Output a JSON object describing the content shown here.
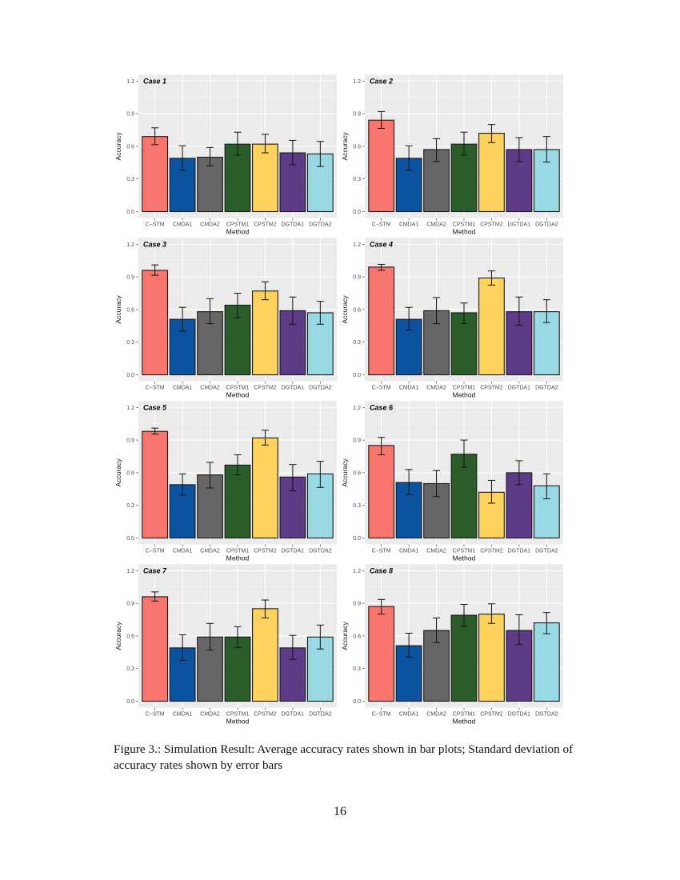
{
  "figure": {
    "caption": "Figure 3.: Simulation Result: Average accuracy rates shown in bar plots; Standard deviation of accuracy rates shown by error bars",
    "page_number": "16"
  },
  "colors": {
    "C-STM": "#F8766D",
    "CMDA1": "#0B539E",
    "CMDA2": "#666666",
    "CPSTM1": "#2A5D2A",
    "CPSTM2": "#FDD35E",
    "DGTDA1": "#5E3B86",
    "DGTDA2": "#98D9E3",
    "panel_bg": "#EBEBEB",
    "grid": "#FFFFFF"
  },
  "chart_data": [
    {
      "type": "bar",
      "title": "Case 1",
      "xlabel": "Method",
      "ylabel": "Accuracy",
      "ylim": [
        0,
        1.2
      ],
      "yticks": [
        "0.0",
        "0.3",
        "0.6",
        "0.9",
        "1.2"
      ],
      "grid": true,
      "categories": [
        "C−STM",
        "CMDA1",
        "CMDA2",
        "CPSTM1",
        "CPSTM2",
        "DGTDA1",
        "DGTDA2"
      ],
      "values": [
        0.69,
        0.49,
        0.5,
        0.62,
        0.62,
        0.54,
        0.53
      ],
      "error_bars": [
        [
          0.615,
          0.77
        ],
        [
          0.38,
          0.605
        ],
        [
          0.42,
          0.59
        ],
        [
          0.52,
          0.73
        ],
        [
          0.54,
          0.71
        ],
        [
          0.43,
          0.655
        ],
        [
          0.415,
          0.645
        ]
      ]
    },
    {
      "type": "bar",
      "title": "Case 2",
      "xlabel": "Method",
      "ylabel": "Accuracy",
      "ylim": [
        0,
        1.2
      ],
      "yticks": [
        "0.0",
        "0.3",
        "0.6",
        "0.9",
        "1.2"
      ],
      "grid": true,
      "categories": [
        "C−STM",
        "CMDA1",
        "CMDA2",
        "CPSTM1",
        "CPSTM2",
        "DGTDA1",
        "DGTDA2"
      ],
      "values": [
        0.84,
        0.49,
        0.57,
        0.62,
        0.72,
        0.57,
        0.57
      ],
      "error_bars": [
        [
          0.765,
          0.92
        ],
        [
          0.38,
          0.605
        ],
        [
          0.46,
          0.67
        ],
        [
          0.52,
          0.73
        ],
        [
          0.635,
          0.8
        ],
        [
          0.46,
          0.68
        ],
        [
          0.455,
          0.69
        ]
      ]
    },
    {
      "type": "bar",
      "title": "Case 3",
      "xlabel": "Method",
      "ylabel": "Accuracy",
      "ylim": [
        0,
        1.2
      ],
      "yticks": [
        "0.0",
        "0.3",
        "0.6",
        "0.9",
        "1.2"
      ],
      "grid": true,
      "categories": [
        "C−STM",
        "CMDA1",
        "CMDA2",
        "CPSTM1",
        "CPSTM2",
        "DGTDA1",
        "DGTDA2"
      ],
      "values": [
        0.96,
        0.51,
        0.58,
        0.64,
        0.77,
        0.59,
        0.57
      ],
      "error_bars": [
        [
          0.915,
          1.01
        ],
        [
          0.4,
          0.62
        ],
        [
          0.47,
          0.7
        ],
        [
          0.525,
          0.75
        ],
        [
          0.69,
          0.855
        ],
        [
          0.465,
          0.715
        ],
        [
          0.465,
          0.675
        ]
      ]
    },
    {
      "type": "bar",
      "title": "Case 4",
      "xlabel": "Method",
      "ylabel": "Accuracy",
      "ylim": [
        0,
        1.2
      ],
      "yticks": [
        "0.0",
        "0.3",
        "0.6",
        "0.9",
        "1.2"
      ],
      "grid": true,
      "categories": [
        "C−STM",
        "CMDA1",
        "CMDA2",
        "CPSTM1",
        "CPSTM2",
        "DGTDA1",
        "DGTDA2"
      ],
      "values": [
        0.99,
        0.51,
        0.59,
        0.57,
        0.89,
        0.58,
        0.58
      ],
      "error_bars": [
        [
          0.96,
          1.015
        ],
        [
          0.41,
          0.62
        ],
        [
          0.47,
          0.71
        ],
        [
          0.47,
          0.66
        ],
        [
          0.825,
          0.955
        ],
        [
          0.455,
          0.715
        ],
        [
          0.48,
          0.69
        ]
      ]
    },
    {
      "type": "bar",
      "title": "Case 5",
      "xlabel": "Method",
      "ylabel": "Accuracy",
      "ylim": [
        0,
        1.2
      ],
      "yticks": [
        "0.0",
        "0.3",
        "0.6",
        "0.9",
        "1.2"
      ],
      "grid": true,
      "categories": [
        "C−STM",
        "CMDA1",
        "CMDA2",
        "CPSTM1",
        "CPSTM2",
        "DGTDA1",
        "DGTDA2"
      ],
      "values": [
        0.98,
        0.49,
        0.58,
        0.67,
        0.92,
        0.56,
        0.59
      ],
      "error_bars": [
        [
          0.955,
          1.01
        ],
        [
          0.395,
          0.59
        ],
        [
          0.46,
          0.695
        ],
        [
          0.58,
          0.765
        ],
        [
          0.855,
          0.99
        ],
        [
          0.435,
          0.675
        ],
        [
          0.465,
          0.705
        ]
      ]
    },
    {
      "type": "bar",
      "title": "Case 6",
      "xlabel": "Method",
      "ylabel": "Accuracy",
      "ylim": [
        0,
        1.2
      ],
      "yticks": [
        "0.0",
        "0.3",
        "0.6",
        "0.9",
        "1.2"
      ],
      "grid": true,
      "categories": [
        "C−STM",
        "CMDA1",
        "CMDA2",
        "CPSTM1",
        "CPSTM2",
        "DGTDA1",
        "DGTDA2"
      ],
      "values": [
        0.85,
        0.51,
        0.5,
        0.77,
        0.42,
        0.6,
        0.48
      ],
      "error_bars": [
        [
          0.765,
          0.925
        ],
        [
          0.4,
          0.63
        ],
        [
          0.38,
          0.62
        ],
        [
          0.65,
          0.9
        ],
        [
          0.32,
          0.53
        ],
        [
          0.49,
          0.71
        ],
        [
          0.36,
          0.59
        ]
      ]
    },
    {
      "type": "bar",
      "title": "Case 7",
      "xlabel": "Method",
      "ylabel": "Accuracy",
      "ylim": [
        0,
        1.2
      ],
      "yticks": [
        "0.0",
        "0.3",
        "0.6",
        "0.9",
        "1.2"
      ],
      "grid": true,
      "categories": [
        "C−STM",
        "CMDA1",
        "CMDA2",
        "CPSTM1",
        "CPSTM2",
        "DGTDA1",
        "DGTDA2"
      ],
      "values": [
        0.96,
        0.49,
        0.59,
        0.59,
        0.85,
        0.49,
        0.59
      ],
      "error_bars": [
        [
          0.92,
          1.005
        ],
        [
          0.375,
          0.61
        ],
        [
          0.47,
          0.715
        ],
        [
          0.495,
          0.685
        ],
        [
          0.765,
          0.93
        ],
        [
          0.385,
          0.605
        ],
        [
          0.48,
          0.7
        ]
      ]
    },
    {
      "type": "bar",
      "title": "Case 8",
      "xlabel": "Method",
      "ylabel": "Accuracy",
      "ylim": [
        0,
        1.2
      ],
      "yticks": [
        "0.0",
        "0.3",
        "0.6",
        "0.9",
        "1.2"
      ],
      "grid": true,
      "categories": [
        "C−STM",
        "CMDA1",
        "CMDA2",
        "CPSTM1",
        "CPSTM2",
        "DGTDA1",
        "DGTDA2"
      ],
      "values": [
        0.87,
        0.51,
        0.65,
        0.79,
        0.8,
        0.65,
        0.72
      ],
      "error_bars": [
        [
          0.8,
          0.935
        ],
        [
          0.405,
          0.625
        ],
        [
          0.54,
          0.765
        ],
        [
          0.685,
          0.89
        ],
        [
          0.715,
          0.895
        ],
        [
          0.52,
          0.795
        ],
        [
          0.62,
          0.815
        ]
      ]
    }
  ]
}
